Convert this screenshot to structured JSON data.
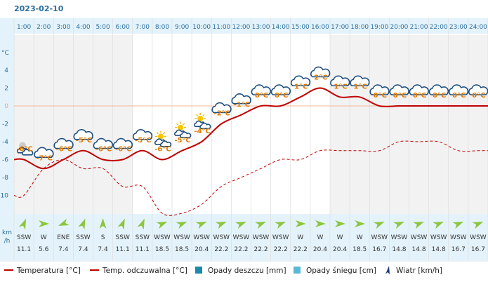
{
  "chart_data": {
    "type": "line",
    "title": "2023-02-10",
    "x": [
      "1:00",
      "2:00",
      "3:00",
      "4:00",
      "5:00",
      "6:00",
      "7:00",
      "8:00",
      "9:00",
      "10:00",
      "11:00",
      "12:00",
      "13:00",
      "14:00",
      "15:00",
      "16:00",
      "17:00",
      "18:00",
      "19:00",
      "20:00",
      "21:00",
      "22:00",
      "23:00",
      "24:00"
    ],
    "y_unit": "°C",
    "ylim": [
      -12,
      6
    ],
    "y_ticks": [
      4,
      2,
      0,
      -2,
      -4,
      -6,
      -8,
      -10
    ],
    "series": [
      {
        "name": "Temperatura [°C]",
        "color": "#c00000",
        "style": "solid",
        "values": [
          -6,
          -7,
          -6,
          -5,
          -6,
          -6,
          -5,
          -6,
          -5,
          -4,
          -2,
          -1,
          0,
          0,
          1,
          2,
          1,
          1,
          0,
          0,
          0,
          0,
          0,
          0
        ]
      },
      {
        "name": "Temp. odczuwalna [°C]",
        "color": "#c00000",
        "style": "dashed",
        "values": [
          -10,
          -7,
          -6,
          -7,
          -7,
          -9,
          -9,
          -12,
          -12,
          -11,
          -9,
          -8,
          -7,
          -6,
          -6,
          -5,
          -5,
          -5,
          -5,
          -4,
          -4,
          -4,
          -5,
          -5
        ]
      }
    ],
    "temp_labels": [
      "-6°C",
      "-7°C",
      "-6°C",
      "-5°C",
      "-6°C",
      "-6°C",
      "-5°C",
      "-6°C",
      "-5°C",
      "-4°C",
      "-2°C",
      "-1°C",
      "0°C",
      "0°C",
      "1°C",
      "2°C",
      "1°C",
      "1°C",
      "0°C",
      "0°C",
      "0°C",
      "0°C",
      "0°C",
      "0°C"
    ],
    "weather_icons": [
      "partly-cloudy-night-icon",
      "cloud-icon",
      "cloud-icon",
      "cloud-icon",
      "cloud-icon",
      "cloud-icon",
      "cloud-icon",
      "partly-sunny-icon",
      "partly-sunny-icon",
      "partly-sunny-icon",
      "cloud-icon",
      "cloud-icon",
      "cloud-icon",
      "cloud-icon",
      "cloud-icon",
      "cloud-icon",
      "cloud-icon",
      "cloud-icon",
      "cloud-icon",
      "cloud-icon",
      "cloud-icon",
      "cloud-icon",
      "cloud-icon",
      "cloud-icon"
    ],
    "wind": {
      "unit_label": [
        "km",
        "/h"
      ],
      "directions": [
        "SSW",
        "W",
        "ENE",
        "SSW",
        "S",
        "SSW",
        "SSW",
        "WSW",
        "WSW",
        "WSW",
        "WSW",
        "WSW",
        "WSW",
        "WSW",
        "W",
        "W",
        "W",
        "W",
        "WSW",
        "WSW",
        "WSW",
        "WSW",
        "WSW",
        "WSW"
      ],
      "speeds": [
        "11.1",
        "5.6",
        "7.4",
        "7.4",
        "7.4",
        "11.1",
        "11.1",
        "18.5",
        "18.5",
        "20.4",
        "22.2",
        "22.2",
        "22.2",
        "22.2",
        "22.2",
        "20.4",
        "20.4",
        "18.5",
        "16.7",
        "14.8",
        "14.8",
        "14.8",
        "16.7",
        "16.7"
      ]
    },
    "legend": {
      "placement": "bottom",
      "items": [
        {
          "label": "Temperatura [°C]",
          "kind": "line-solid",
          "color": "#c00000"
        },
        {
          "label": "Temp. odczuwalna [°C]",
          "kind": "line-solid",
          "color": "#c00000"
        },
        {
          "label": "Opady deszczu [mm]",
          "kind": "box",
          "color": "#1a8aaa"
        },
        {
          "label": "Opady śniegu [cm]",
          "kind": "box",
          "color": "#5ab8d4"
        },
        {
          "label": "Wiatr [km/h]",
          "kind": "wind-arrow",
          "color": "#1a3a6e"
        }
      ]
    },
    "colors": {
      "header_band": "#e4f3fb",
      "night_column": "#f2f2f2",
      "day_column": "#ffffff",
      "zero_line": "#f4b89a",
      "label_orange": "#e07a00",
      "wind_arrow": "#8cc63e",
      "axis_text": "#2b6e9e",
      "grid": "#dddddd"
    }
  }
}
